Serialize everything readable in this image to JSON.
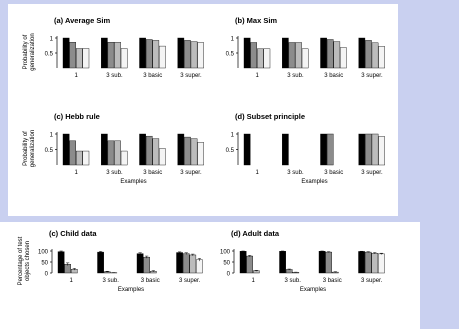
{
  "colors": {
    "background": "#c9d0f0",
    "panel": "#ffffff",
    "bar_shades": [
      "#000000",
      "#8c8c8c",
      "#bcbcbc",
      "#f4f4f4"
    ]
  },
  "chart_data": [
    {
      "type": "bar",
      "title": "(a) Average Sim",
      "ylabel": "Probability of generalization",
      "xlabel": "",
      "ylim": [
        0,
        1
      ],
      "yticks": [
        {
          "value": 0.5,
          "label": "0.5"
        },
        {
          "value": 1,
          "label": "1"
        }
      ],
      "categories": [
        "1",
        "3 sub.",
        "3 basic",
        "3 super."
      ],
      "series": [
        {
          "values": [
            1.0,
            1.0,
            1.0,
            1.0
          ]
        },
        {
          "values": [
            0.86,
            0.86,
            0.95,
            0.92
          ]
        },
        {
          "values": [
            0.65,
            0.86,
            0.92,
            0.88
          ]
        },
        {
          "values": [
            0.65,
            0.65,
            0.73,
            0.85
          ]
        }
      ]
    },
    {
      "type": "bar",
      "title": "(b) Max Sim",
      "ylabel": "",
      "xlabel": "",
      "ylim": [
        0,
        1
      ],
      "yticks": [
        {
          "value": 0.5,
          "label": "0.5"
        },
        {
          "value": 1,
          "label": "1"
        }
      ],
      "categories": [
        "1",
        "3 sub.",
        "3 basic",
        "3 super."
      ],
      "series": [
        {
          "values": [
            1.0,
            1.0,
            1.0,
            1.0
          ]
        },
        {
          "values": [
            0.85,
            0.85,
            0.95,
            0.92
          ]
        },
        {
          "values": [
            0.64,
            0.85,
            0.88,
            0.84
          ]
        },
        {
          "values": [
            0.64,
            0.64,
            0.68,
            0.72
          ]
        }
      ]
    },
    {
      "type": "bar",
      "title": "(c) Hebb rule",
      "ylabel": "Probability of generalization",
      "xlabel": "Examples",
      "ylim": [
        0,
        1
      ],
      "yticks": [
        {
          "value": 0.5,
          "label": "0.5"
        },
        {
          "value": 1,
          "label": "1"
        }
      ],
      "categories": [
        "1",
        "3 sub.",
        "3 basic",
        "3 super."
      ],
      "series": [
        {
          "values": [
            1.0,
            1.0,
            1.0,
            1.0
          ]
        },
        {
          "values": [
            0.78,
            0.78,
            0.93,
            0.9
          ]
        },
        {
          "values": [
            0.45,
            0.78,
            0.85,
            0.85
          ]
        },
        {
          "values": [
            0.45,
            0.45,
            0.53,
            0.73
          ]
        }
      ]
    },
    {
      "type": "bar",
      "title": "(d) Subset principle",
      "ylabel": "",
      "xlabel": "Examples",
      "ylim": [
        0,
        1
      ],
      "yticks": [
        {
          "value": 0.5,
          "label": "0.5"
        },
        {
          "value": 1,
          "label": "1"
        }
      ],
      "categories": [
        "1",
        "3 sub.",
        "3 basic",
        "3 super."
      ],
      "series": [
        {
          "values": [
            1.0,
            1.0,
            1.0,
            1.0
          ]
        },
        {
          "values": [
            0.0,
            0.0,
            1.0,
            1.0
          ]
        },
        {
          "values": [
            0.0,
            0.0,
            0.0,
            1.0
          ]
        },
        {
          "values": [
            0.0,
            0.0,
            0.0,
            0.92
          ]
        }
      ]
    },
    {
      "type": "bar",
      "title": "(c) Child data",
      "ylabel": "Percentage of test objects chosen",
      "xlabel": "Examples",
      "ylim": [
        0,
        100
      ],
      "yticks": [
        {
          "value": 0,
          "label": "0"
        },
        {
          "value": 50,
          "label": "50"
        },
        {
          "value": 100,
          "label": "100"
        }
      ],
      "categories": [
        "1",
        "3 sub.",
        "3 basic",
        "3 super."
      ],
      "series": [
        {
          "values": [
            97,
            95,
            88,
            93
          ]
        },
        {
          "values": [
            40,
            6,
            72,
            88
          ]
        },
        {
          "values": [
            17,
            1,
            8,
            82
          ]
        },
        {
          "values": [
            0,
            0,
            0,
            60
          ]
        }
      ],
      "errors": [
        [
          3,
          3,
          4,
          3
        ],
        [
          6,
          2,
          5,
          4
        ],
        [
          4,
          1,
          3,
          4
        ],
        [
          0,
          0,
          0,
          6
        ]
      ]
    },
    {
      "type": "bar",
      "title": "(d) Adult data",
      "ylabel": "",
      "xlabel": "Examples",
      "ylim": [
        0,
        100
      ],
      "yticks": [
        {
          "value": 0,
          "label": "0"
        },
        {
          "value": 50,
          "label": "50"
        },
        {
          "value": 100,
          "label": "100"
        }
      ],
      "categories": [
        "1",
        "3 sub.",
        "3 basic",
        "3 super."
      ],
      "series": [
        {
          "values": [
            99,
            99,
            99,
            98
          ]
        },
        {
          "values": [
            77,
            16,
            95,
            95
          ]
        },
        {
          "values": [
            10,
            3,
            4,
            90
          ]
        },
        {
          "values": [
            0,
            0,
            0,
            87
          ]
        }
      ],
      "errors": [
        [
          1,
          1,
          1,
          1
        ],
        [
          3,
          2,
          2,
          2
        ],
        [
          2,
          1,
          2,
          3
        ],
        [
          0,
          0,
          0,
          3
        ]
      ]
    }
  ]
}
